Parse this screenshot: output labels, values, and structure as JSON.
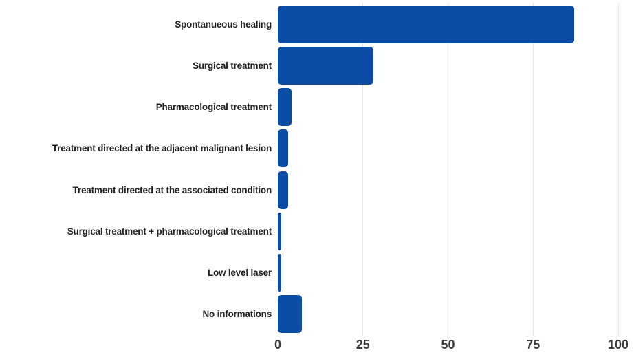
{
  "chart_data": {
    "type": "bar",
    "orientation": "horizontal",
    "title": "",
    "xlabel": "",
    "ylabel": "",
    "categories": [
      "Spontanueous healing",
      "Surgical treatment",
      "Pharmacological treatment",
      "Treatment directed at the adjacent malignant lesion",
      "Treatment directed at the associated condition",
      "Surgical treatment + pharmacological treatment",
      "Low level laser",
      "No informations"
    ],
    "values": [
      87,
      28,
      4,
      3,
      3,
      1,
      1,
      7
    ],
    "xlim": [
      0,
      100
    ],
    "xticks": [
      0,
      25,
      50,
      75,
      100
    ],
    "grid": true,
    "legend": false,
    "bar_color": "#0b4da6",
    "background_color": "#ffffff",
    "gridline_color": "#e4e4e4",
    "label_color": "#222222",
    "tick_color": "#3d3d3d"
  }
}
